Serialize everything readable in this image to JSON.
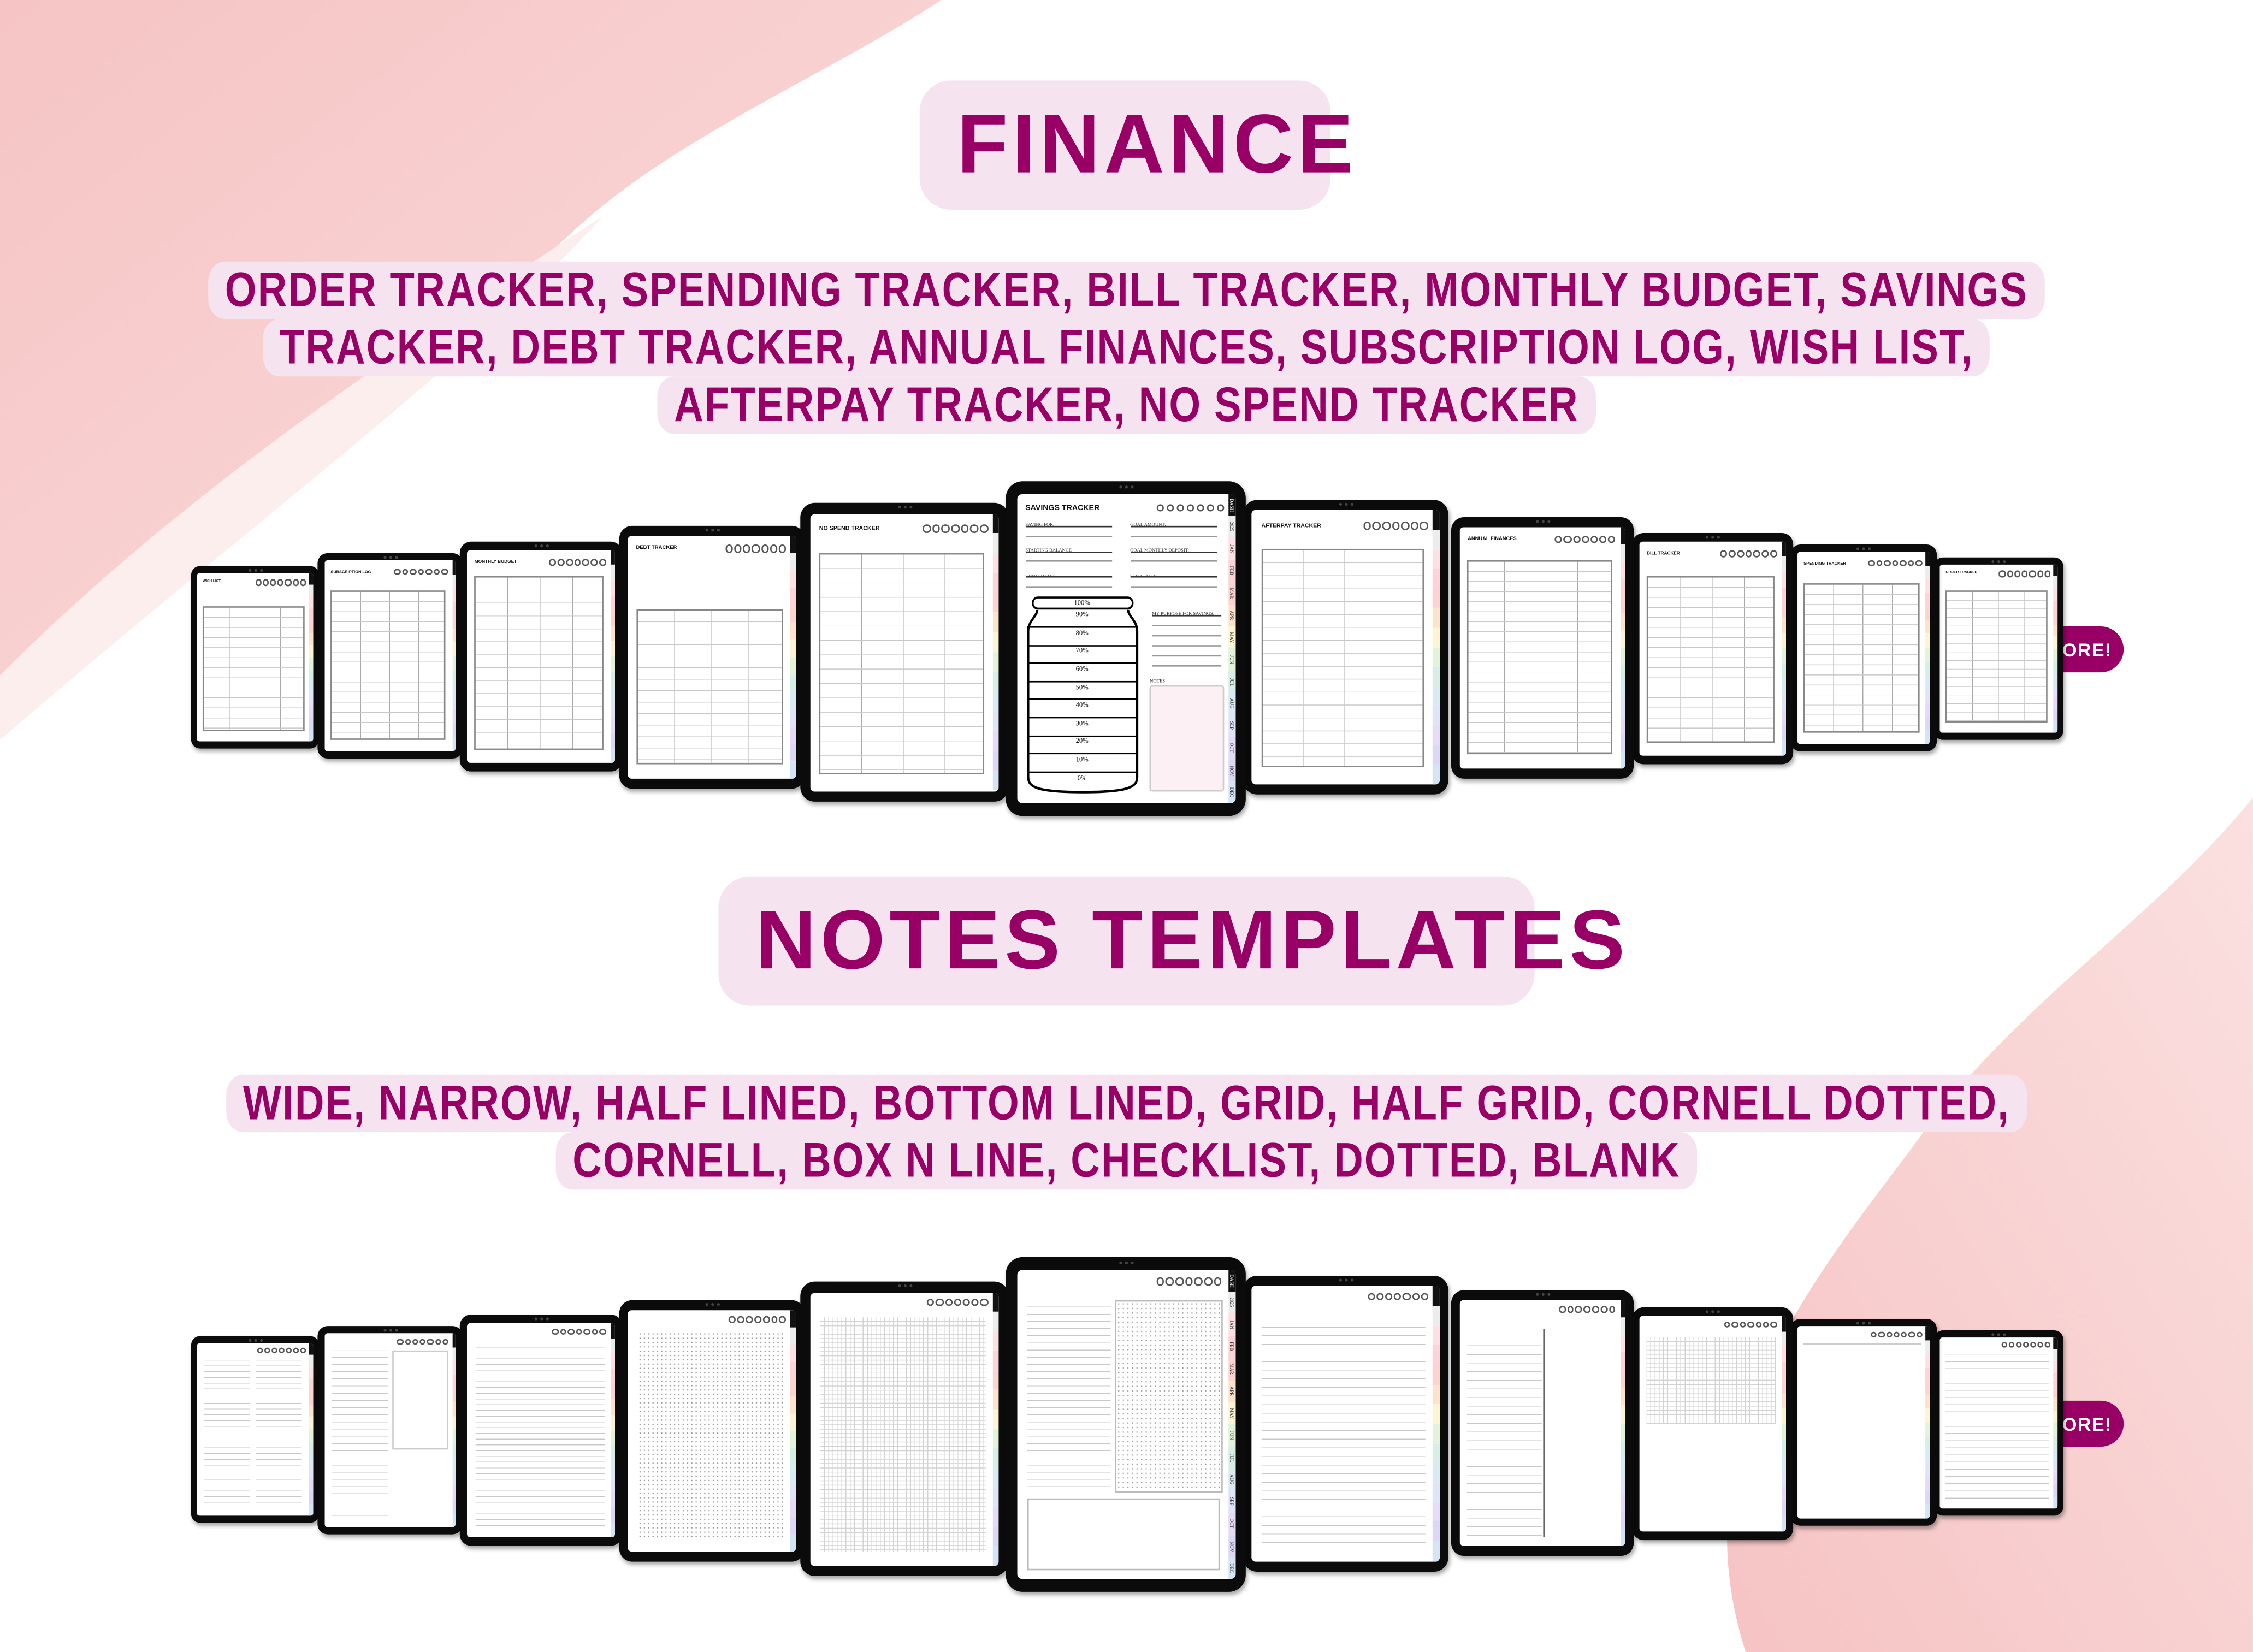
{
  "colors": {
    "accent": "#990066",
    "pill_bg": "#f6e3f0",
    "blob": "#f7caca"
  },
  "finance": {
    "heading": "FINANCE",
    "items_lines": [
      "ORDER TRACKER, SPENDING TRACKER, BILL TRACKER, MONTHLY BUDGET, SAVINGS",
      "TRACKER, DEBT TRACKER, ANNUAL FINANCES, SUBSCRIPTION LOG, WISH LIST,",
      "AFTERPAY TRACKER, NO SPEND TRACKER"
    ],
    "tablets": [
      {
        "title": "WISH LIST"
      },
      {
        "title": "SUBSCRIPTION LOG"
      },
      {
        "title": "MONTHLY BUDGET"
      },
      {
        "title": "DEBT TRACKER"
      },
      {
        "title": "NO SPEND TRACKER"
      },
      {
        "title": "SAVINGS TRACKER"
      },
      {
        "title": "AFTERPAY TRACKER"
      },
      {
        "title": "ANNUAL FINANCES"
      },
      {
        "title": "BILL TRACKER"
      },
      {
        "title": "SPENDING TRACKER"
      },
      {
        "title": "ORDER TRACKER"
      }
    ],
    "savings": {
      "saving_for": "SAVING FOR:",
      "goal_amount": "GOAL AMOUNT:",
      "starting_balance": "STARTING BALANCE",
      "goal_monthly_deposit": "GOAL MONTHLY DEPOSIT:",
      "start_date": "START DATE:",
      "goal_date": "GOAL DATE:",
      "purpose": "MY PURPOSE FOR SAVINGS:",
      "notes": "NOTES",
      "jar_levels": [
        "100%",
        "90%",
        "80%",
        "70%",
        "60%",
        "50%",
        "40%",
        "30%",
        "20%",
        "10%",
        "0%"
      ]
    },
    "more_badge": "AND MORE!"
  },
  "notes": {
    "heading": "NOTES TEMPLATES",
    "items_lines": [
      "WIDE, NARROW, HALF LINED, BOTTOM LINED, GRID, HALF GRID, CORNELL DOTTED,",
      "CORNELL, BOX N LINE, CHECKLIST, DOTTED, BLANK"
    ],
    "more_badge": "AND MORE!"
  },
  "month_tabs": [
    {
      "label": "DASH",
      "color": "#111111"
    },
    {
      "label": "2025",
      "color": "#ececec"
    },
    {
      "label": "JAN",
      "color": "#fde0e3"
    },
    {
      "label": "FEB",
      "color": "#fcd3d7"
    },
    {
      "label": "MAR",
      "color": "#fbd4cf"
    },
    {
      "label": "APR",
      "color": "#fde3cc"
    },
    {
      "label": "MAY",
      "color": "#fdf4d3"
    },
    {
      "label": "JUN",
      "color": "#e3f3da"
    },
    {
      "label": "JUL",
      "color": "#d7eee7"
    },
    {
      "label": "AUG",
      "color": "#d8ebf3"
    },
    {
      "label": "SEP",
      "color": "#dfe4f7"
    },
    {
      "label": "OCT",
      "color": "#e6dbf7"
    },
    {
      "label": "NOV",
      "color": "#dcd7f5"
    },
    {
      "label": "DEC",
      "color": "#d3e5f5"
    }
  ]
}
